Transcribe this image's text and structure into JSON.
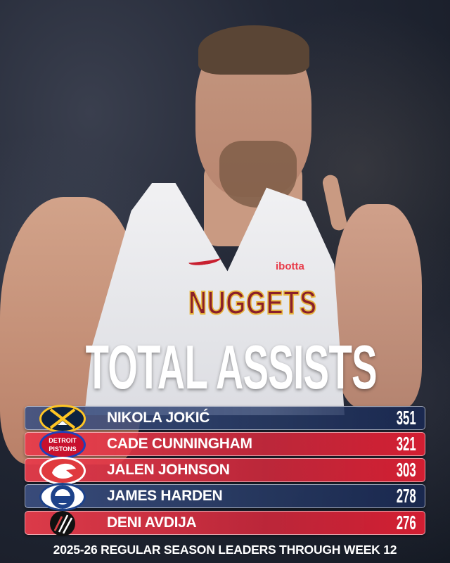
{
  "title": "TOTAL ASSISTS",
  "photo": {
    "jersey_text": "NUGGETS",
    "sponsor": "ibotta"
  },
  "leaders": [
    {
      "rank": 1,
      "name": "NIKOLA JOKIĆ",
      "value": "351",
      "team_logo": "denver-nuggets-logo",
      "color": "#2f4a82"
    },
    {
      "rank": 2,
      "name": "CADE CUNNINGHAM",
      "value": "321",
      "team_logo": "detroit-pistons-logo",
      "logo_text": "DETROIT PISTONS",
      "color": "#e0334a"
    },
    {
      "rank": 3,
      "name": "JALEN JOHNSON",
      "value": "303",
      "team_logo": "atlanta-hawks-logo",
      "color": "#e0334a"
    },
    {
      "rank": 4,
      "name": "JAMES HARDEN",
      "value": "278",
      "team_logo": "la-clippers-logo",
      "color": "#2f4a82"
    },
    {
      "rank": 5,
      "name": "DENI AVDIJA",
      "value": "276",
      "team_logo": "portland-trail-blazers-logo",
      "color": "#e0334a"
    }
  ],
  "footer": "2025-26 REGULAR SEASON LEADERS THROUGH WEEK 12"
}
